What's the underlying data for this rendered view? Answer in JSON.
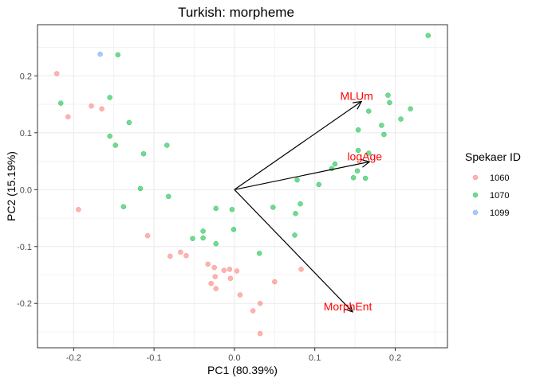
{
  "chart_data": {
    "type": "scatter",
    "title": "Turkish: morpheme",
    "xlabel": "PC1 (80.39%)",
    "ylabel": "PC2 (15.19%)",
    "xlim": [
      -0.245,
      0.265
    ],
    "ylim": [
      -0.278,
      0.29
    ],
    "xticks": [
      -0.2,
      -0.1,
      0.0,
      0.1,
      0.2
    ],
    "xtick_labels": [
      "-0.2",
      "-0.1",
      "0.0",
      "0.1",
      "0.2"
    ],
    "yticks": [
      -0.2,
      -0.1,
      0.0,
      0.1,
      0.2
    ],
    "ytick_labels": [
      "-0.2",
      "-0.1",
      "0.0",
      "0.1",
      "0.2"
    ],
    "grid": true,
    "legend": {
      "title": "Spekaer ID",
      "position": "right",
      "entries": [
        {
          "label": "1060",
          "color": "#F8766D"
        },
        {
          "label": "1070",
          "color": "#00BA38"
        },
        {
          "label": "1099",
          "color": "#619CFF"
        }
      ]
    },
    "series": [
      {
        "name": "1060",
        "color": "#F8766D",
        "points": [
          [
            -0.221,
            0.204
          ],
          [
            -0.207,
            0.128
          ],
          [
            -0.178,
            0.147
          ],
          [
            -0.165,
            0.142
          ],
          [
            -0.194,
            -0.035
          ],
          [
            -0.108,
            -0.081
          ],
          [
            -0.08,
            -0.117
          ],
          [
            -0.067,
            -0.11
          ],
          [
            -0.06,
            -0.116
          ],
          [
            -0.033,
            -0.131
          ],
          [
            -0.025,
            -0.137
          ],
          [
            -0.013,
            -0.142
          ],
          [
            -0.029,
            -0.165
          ],
          [
            -0.023,
            -0.174
          ],
          [
            -0.005,
            -0.156
          ],
          [
            -0.006,
            -0.14
          ],
          [
            -0.024,
            -0.153
          ],
          [
            0.003,
            -0.143
          ],
          [
            0.007,
            -0.185
          ],
          [
            0.023,
            -0.213
          ],
          [
            0.032,
            -0.2
          ],
          [
            0.05,
            -0.162
          ],
          [
            0.032,
            -0.253
          ],
          [
            0.083,
            -0.14
          ]
        ]
      },
      {
        "name": "1070",
        "color": "#00BA38",
        "points": [
          [
            -0.145,
            0.237
          ],
          [
            -0.216,
            0.152
          ],
          [
            -0.155,
            0.162
          ],
          [
            -0.131,
            0.118
          ],
          [
            -0.155,
            0.094
          ],
          [
            -0.148,
            0.078
          ],
          [
            -0.113,
            0.063
          ],
          [
            -0.084,
            0.078
          ],
          [
            -0.117,
            0.002
          ],
          [
            -0.082,
            -0.012
          ],
          [
            -0.138,
            -0.03
          ],
          [
            -0.023,
            -0.033
          ],
          [
            -0.052,
            -0.086
          ],
          [
            -0.039,
            -0.073
          ],
          [
            -0.039,
            -0.085
          ],
          [
            -0.023,
            -0.095
          ],
          [
            -0.003,
            -0.035
          ],
          [
            -0.001,
            -0.07
          ],
          [
            0.031,
            -0.112
          ],
          [
            0.048,
            -0.031
          ],
          [
            0.076,
            -0.042
          ],
          [
            0.082,
            -0.025
          ],
          [
            0.075,
            -0.08
          ],
          [
            0.078,
            0.017
          ],
          [
            0.105,
            0.009
          ],
          [
            0.121,
            0.037
          ],
          [
            0.125,
            0.045
          ],
          [
            0.148,
            0.021
          ],
          [
            0.153,
            0.033
          ],
          [
            0.154,
            0.069
          ],
          [
            0.163,
            0.02
          ],
          [
            0.167,
            0.064
          ],
          [
            0.154,
            0.105
          ],
          [
            0.167,
            0.138
          ],
          [
            0.183,
            0.113
          ],
          [
            0.186,
            0.097
          ],
          [
            0.191,
            0.166
          ],
          [
            0.193,
            0.153
          ],
          [
            0.207,
            0.124
          ],
          [
            0.219,
            0.142
          ],
          [
            0.241,
            0.271
          ]
        ]
      },
      {
        "name": "1099",
        "color": "#619CFF",
        "points": [
          [
            -0.167,
            0.238
          ]
        ]
      }
    ],
    "loadings": [
      {
        "label": "MLUm",
        "x": 0.158,
        "y": 0.155,
        "color": "#FF0000"
      },
      {
        "label": "logAge",
        "x": 0.168,
        "y": 0.049,
        "color": "#FF0000"
      },
      {
        "label": "MorphEnt",
        "x": 0.147,
        "y": -0.215,
        "color": "#FF0000"
      }
    ]
  }
}
